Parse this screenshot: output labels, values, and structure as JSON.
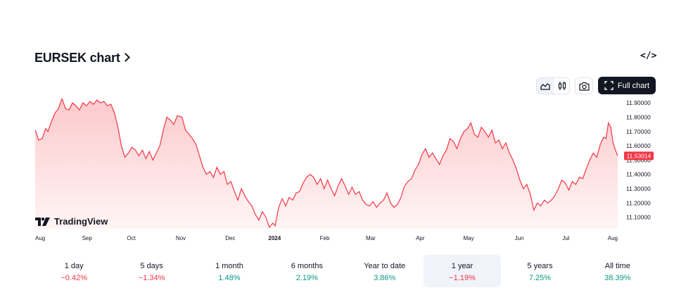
{
  "header": {
    "title": "EURSEK chart",
    "embed_label": "</>"
  },
  "toolbar": {
    "full_chart_label": "Full chart"
  },
  "logo": {
    "text": "TradingView"
  },
  "colors": {
    "line": "#f23645",
    "area_top": "#fcc9cc",
    "area_bottom": "#fff5f5",
    "price_tag": "#f23645"
  },
  "periods": [
    {
      "label": "1 day",
      "value": "−0.42%",
      "trend": "neg"
    },
    {
      "label": "5 days",
      "value": "−1.34%",
      "trend": "neg"
    },
    {
      "label": "1 month",
      "value": "1.48%",
      "trend": "pos"
    },
    {
      "label": "6 months",
      "value": "2.19%",
      "trend": "pos"
    },
    {
      "label": "Year to date",
      "value": "3.86%",
      "trend": "pos"
    },
    {
      "label": "1 year",
      "value": "−1.19%",
      "trend": "neg",
      "active": true
    },
    {
      "label": "5 years",
      "value": "7.25%",
      "trend": "pos"
    },
    {
      "label": "All time",
      "value": "38.39%",
      "trend": "pos"
    }
  ],
  "chart_data": {
    "type": "area",
    "title": "",
    "xlabel": "",
    "ylabel": "",
    "ylim": [
      11.02,
      11.93
    ],
    "y_ticks": [
      "11.90000",
      "11.80000",
      "11.70000",
      "11.60000",
      "11.50000",
      "11.40000",
      "11.30000",
      "11.20000",
      "11.10000"
    ],
    "y_tick_values": [
      11.9,
      11.8,
      11.7,
      11.6,
      11.5,
      11.4,
      11.3,
      11.2,
      11.1
    ],
    "x_ticks": [
      {
        "label": "Aug",
        "t": 0.0,
        "bold": false
      },
      {
        "label": "Sep",
        "t": 0.089,
        "bold": false
      },
      {
        "label": "Oct",
        "t": 0.165,
        "bold": false
      },
      {
        "label": "Nov",
        "t": 0.25,
        "bold": false
      },
      {
        "label": "Dec",
        "t": 0.335,
        "bold": false
      },
      {
        "label": "2024",
        "t": 0.411,
        "bold": true
      },
      {
        "label": "Feb",
        "t": 0.497,
        "bold": false
      },
      {
        "label": "Mar",
        "t": 0.576,
        "bold": false
      },
      {
        "label": "Apr",
        "t": 0.661,
        "bold": false
      },
      {
        "label": "May",
        "t": 0.744,
        "bold": false
      },
      {
        "label": "Jun",
        "t": 0.831,
        "bold": false
      },
      {
        "label": "Jul",
        "t": 0.911,
        "bold": false
      },
      {
        "label": "Aug",
        "t": 1.0,
        "bold": false
      }
    ],
    "last_price_label": "11.53014",
    "last_price": 11.53,
    "series": [
      {
        "values": [
          [
            0.0,
            11.71
          ],
          [
            0.006,
            11.64
          ],
          [
            0.012,
            11.65
          ],
          [
            0.018,
            11.72
          ],
          [
            0.022,
            11.7
          ],
          [
            0.028,
            11.77
          ],
          [
            0.034,
            11.83
          ],
          [
            0.04,
            11.86
          ],
          [
            0.046,
            11.93
          ],
          [
            0.052,
            11.86
          ],
          [
            0.058,
            11.85
          ],
          [
            0.064,
            11.9
          ],
          [
            0.07,
            11.88
          ],
          [
            0.076,
            11.85
          ],
          [
            0.082,
            11.9
          ],
          [
            0.088,
            11.88
          ],
          [
            0.094,
            11.91
          ],
          [
            0.1,
            11.89
          ],
          [
            0.106,
            11.92
          ],
          [
            0.112,
            11.9
          ],
          [
            0.118,
            11.91
          ],
          [
            0.124,
            11.88
          ],
          [
            0.13,
            11.89
          ],
          [
            0.136,
            11.83
          ],
          [
            0.142,
            11.73
          ],
          [
            0.148,
            11.6
          ],
          [
            0.154,
            11.52
          ],
          [
            0.16,
            11.55
          ],
          [
            0.166,
            11.59
          ],
          [
            0.172,
            11.57
          ],
          [
            0.178,
            11.53
          ],
          [
            0.184,
            11.57
          ],
          [
            0.19,
            11.51
          ],
          [
            0.196,
            11.56
          ],
          [
            0.202,
            11.5
          ],
          [
            0.208,
            11.55
          ],
          [
            0.214,
            11.6
          ],
          [
            0.22,
            11.71
          ],
          [
            0.226,
            11.8
          ],
          [
            0.232,
            11.78
          ],
          [
            0.238,
            11.75
          ],
          [
            0.244,
            11.81
          ],
          [
            0.252,
            11.8
          ],
          [
            0.258,
            11.71
          ],
          [
            0.264,
            11.68
          ],
          [
            0.27,
            11.65
          ],
          [
            0.276,
            11.61
          ],
          [
            0.282,
            11.53
          ],
          [
            0.288,
            11.45
          ],
          [
            0.294,
            11.4
          ],
          [
            0.3,
            11.42
          ],
          [
            0.306,
            11.38
          ],
          [
            0.312,
            11.45
          ],
          [
            0.318,
            11.4
          ],
          [
            0.324,
            11.42
          ],
          [
            0.33,
            11.33
          ],
          [
            0.336,
            11.35
          ],
          [
            0.342,
            11.28
          ],
          [
            0.348,
            11.22
          ],
          [
            0.354,
            11.3
          ],
          [
            0.36,
            11.25
          ],
          [
            0.366,
            11.21
          ],
          [
            0.372,
            11.18
          ],
          [
            0.378,
            11.12
          ],
          [
            0.384,
            11.08
          ],
          [
            0.39,
            11.14
          ],
          [
            0.396,
            11.1
          ],
          [
            0.402,
            11.03
          ],
          [
            0.408,
            11.06
          ],
          [
            0.412,
            11.04
          ],
          [
            0.418,
            11.17
          ],
          [
            0.424,
            11.23
          ],
          [
            0.43,
            11.18
          ],
          [
            0.436,
            11.24
          ],
          [
            0.442,
            11.22
          ],
          [
            0.448,
            11.27
          ],
          [
            0.454,
            11.28
          ],
          [
            0.46,
            11.34
          ],
          [
            0.466,
            11.38
          ],
          [
            0.472,
            11.4
          ],
          [
            0.478,
            11.38
          ],
          [
            0.484,
            11.33
          ],
          [
            0.49,
            11.37
          ],
          [
            0.496,
            11.3
          ],
          [
            0.502,
            11.36
          ],
          [
            0.508,
            11.3
          ],
          [
            0.514,
            11.25
          ],
          [
            0.52,
            11.32
          ],
          [
            0.526,
            11.37
          ],
          [
            0.532,
            11.32
          ],
          [
            0.538,
            11.26
          ],
          [
            0.544,
            11.31
          ],
          [
            0.55,
            11.26
          ],
          [
            0.556,
            11.28
          ],
          [
            0.562,
            11.22
          ],
          [
            0.568,
            11.19
          ],
          [
            0.574,
            11.18
          ],
          [
            0.58,
            11.21
          ],
          [
            0.586,
            11.17
          ],
          [
            0.592,
            11.2
          ],
          [
            0.598,
            11.22
          ],
          [
            0.604,
            11.27
          ],
          [
            0.61,
            11.2
          ],
          [
            0.616,
            11.17
          ],
          [
            0.622,
            11.19
          ],
          [
            0.628,
            11.24
          ],
          [
            0.634,
            11.32
          ],
          [
            0.64,
            11.35
          ],
          [
            0.646,
            11.37
          ],
          [
            0.652,
            11.43
          ],
          [
            0.658,
            11.47
          ],
          [
            0.664,
            11.54
          ],
          [
            0.67,
            11.58
          ],
          [
            0.676,
            11.52
          ],
          [
            0.682,
            11.55
          ],
          [
            0.688,
            11.51
          ],
          [
            0.694,
            11.47
          ],
          [
            0.7,
            11.53
          ],
          [
            0.706,
            11.57
          ],
          [
            0.712,
            11.65
          ],
          [
            0.718,
            11.63
          ],
          [
            0.724,
            11.58
          ],
          [
            0.73,
            11.65
          ],
          [
            0.736,
            11.7
          ],
          [
            0.742,
            11.72
          ],
          [
            0.748,
            11.76
          ],
          [
            0.754,
            11.68
          ],
          [
            0.76,
            11.66
          ],
          [
            0.766,
            11.73
          ],
          [
            0.772,
            11.7
          ],
          [
            0.778,
            11.66
          ],
          [
            0.784,
            11.71
          ],
          [
            0.79,
            11.62
          ],
          [
            0.796,
            11.64
          ],
          [
            0.802,
            11.58
          ],
          [
            0.808,
            11.62
          ],
          [
            0.814,
            11.55
          ],
          [
            0.82,
            11.5
          ],
          [
            0.826,
            11.44
          ],
          [
            0.832,
            11.36
          ],
          [
            0.838,
            11.3
          ],
          [
            0.844,
            11.33
          ],
          [
            0.85,
            11.26
          ],
          [
            0.856,
            11.15
          ],
          [
            0.862,
            11.2
          ],
          [
            0.868,
            11.18
          ],
          [
            0.874,
            11.22
          ],
          [
            0.88,
            11.2
          ],
          [
            0.886,
            11.22
          ],
          [
            0.892,
            11.25
          ],
          [
            0.898,
            11.3
          ],
          [
            0.904,
            11.36
          ],
          [
            0.91,
            11.34
          ],
          [
            0.916,
            11.29
          ],
          [
            0.922,
            11.35
          ],
          [
            0.928,
            11.33
          ],
          [
            0.934,
            11.38
          ],
          [
            0.94,
            11.37
          ],
          [
            0.946,
            11.44
          ],
          [
            0.952,
            11.5
          ],
          [
            0.958,
            11.55
          ],
          [
            0.964,
            11.52
          ],
          [
            0.97,
            11.61
          ],
          [
            0.976,
            11.66
          ],
          [
            0.98,
            11.65
          ],
          [
            0.984,
            11.76
          ],
          [
            0.988,
            11.73
          ],
          [
            0.992,
            11.62
          ],
          [
            0.996,
            11.57
          ],
          [
            1.0,
            11.53
          ]
        ]
      }
    ]
  }
}
